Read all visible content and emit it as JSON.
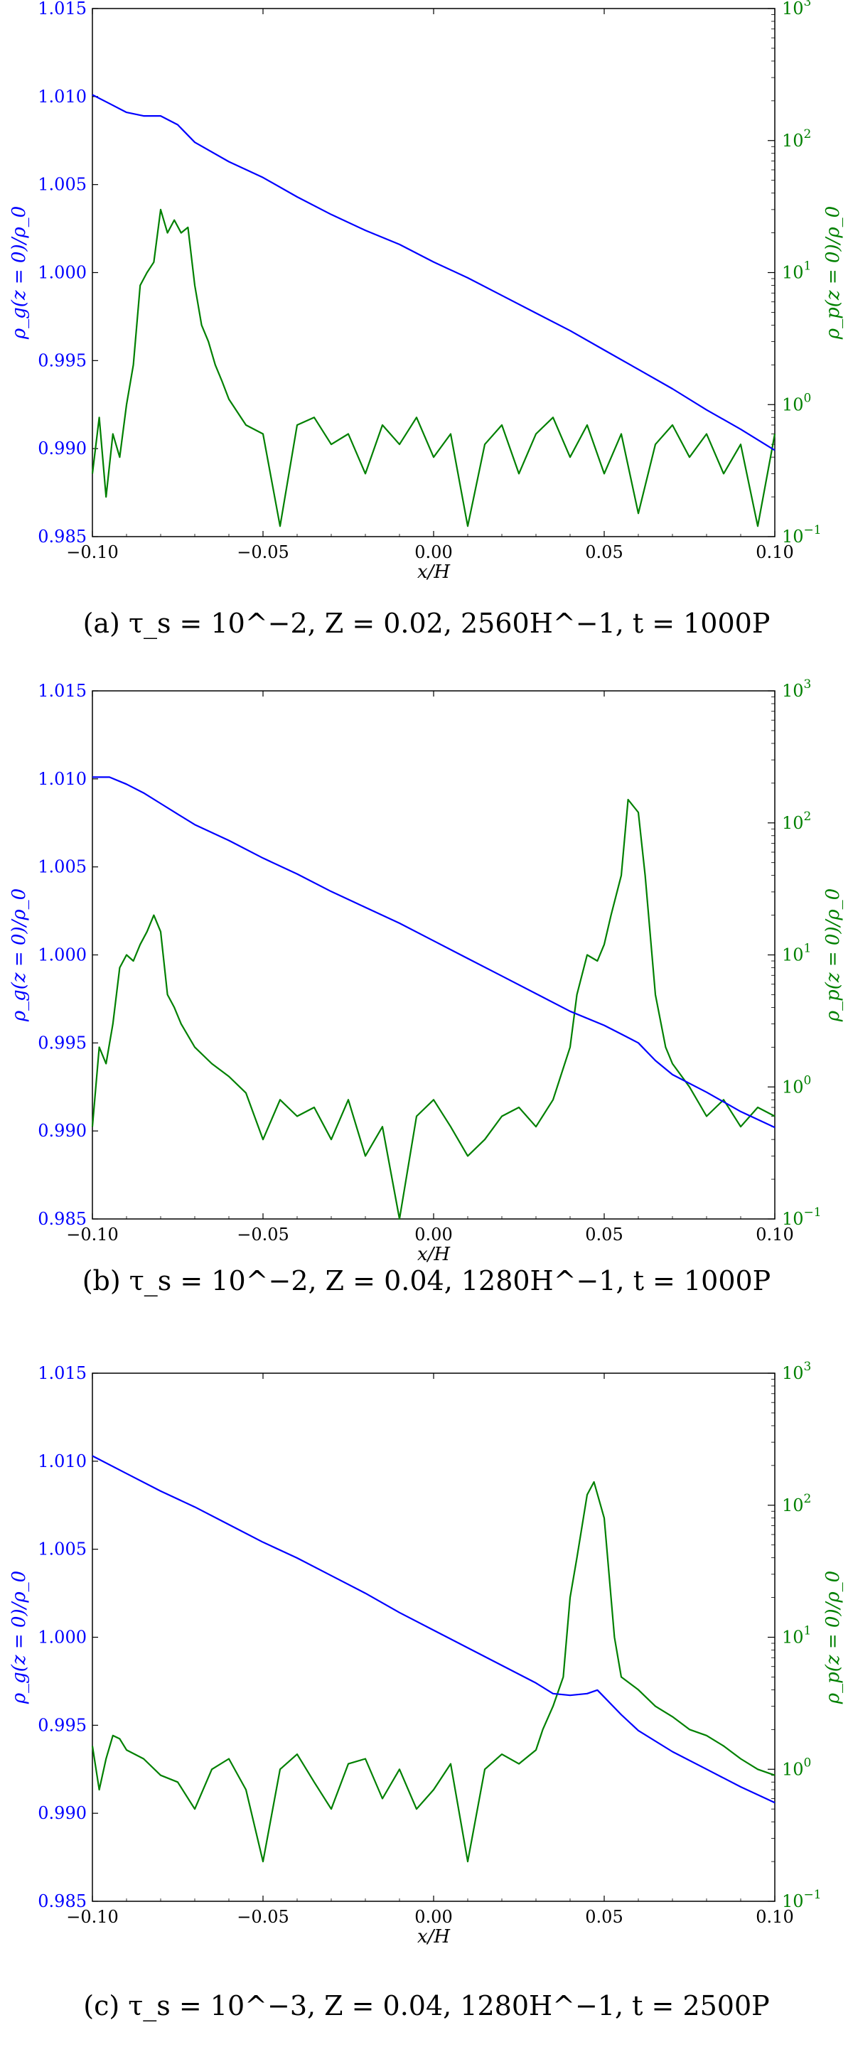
{
  "chart_data": [
    {
      "type": "line",
      "caption": "(a)  τ_s = 10^−2, Z = 0.02, 2560H^−1, t = 1000P",
      "xlabel": "x/H",
      "ylabel": "ρ_g(z = 0)/ρ_0",
      "y2label": "ρ_p(z = 0)/ρ_0",
      "xlim": [
        -0.1,
        0.1
      ],
      "ylim": [
        0.985,
        1.015
      ],
      "y2lim": [
        0.1,
        1000
      ],
      "y2scale": "log",
      "x_ticks": [
        "−0.10",
        "−0.05",
        "0.00",
        "0.05",
        "0.10"
      ],
      "y_ticks": [
        "0.985",
        "0.990",
        "0.995",
        "1.000",
        "1.005",
        "1.010",
        "1.015"
      ],
      "y2_ticks": [
        "10^−1",
        "10^0",
        "10^1",
        "10^2",
        "10^3"
      ],
      "colors": {
        "gas": "#0000ff",
        "particles": "#008000"
      },
      "gas": {
        "x": [
          -0.1,
          -0.095,
          -0.09,
          -0.085,
          -0.08,
          -0.075,
          -0.07,
          -0.06,
          -0.05,
          -0.04,
          -0.03,
          -0.02,
          -0.01,
          0.0,
          0.01,
          0.02,
          0.03,
          0.04,
          0.05,
          0.06,
          0.07,
          0.08,
          0.09,
          0.1
        ],
        "y": [
          1.0101,
          1.0096,
          1.0091,
          1.0089,
          1.0089,
          1.0084,
          1.0074,
          1.0063,
          1.0054,
          1.0043,
          1.0033,
          1.0024,
          1.0016,
          1.0006,
          0.9997,
          0.9987,
          0.9977,
          0.9967,
          0.9956,
          0.9945,
          0.9934,
          0.9922,
          0.9911,
          0.9899
        ]
      },
      "particles": {
        "x": [
          -0.1,
          -0.098,
          -0.096,
          -0.094,
          -0.092,
          -0.09,
          -0.088,
          -0.086,
          -0.084,
          -0.082,
          -0.08,
          -0.078,
          -0.076,
          -0.074,
          -0.072,
          -0.07,
          -0.068,
          -0.066,
          -0.064,
          -0.062,
          -0.06,
          -0.055,
          -0.05,
          -0.045,
          -0.04,
          -0.035,
          -0.03,
          -0.025,
          -0.02,
          -0.015,
          -0.01,
          -0.005,
          0.0,
          0.005,
          0.01,
          0.015,
          0.02,
          0.025,
          0.03,
          0.035,
          0.04,
          0.045,
          0.05,
          0.055,
          0.06,
          0.065,
          0.07,
          0.075,
          0.08,
          0.085,
          0.09,
          0.095,
          0.1
        ],
        "y": [
          0.3,
          0.8,
          0.2,
          0.6,
          0.4,
          1.0,
          2.0,
          8.0,
          10.0,
          12.0,
          30.0,
          20.0,
          25.0,
          20.0,
          22.0,
          8.0,
          4.0,
          3.0,
          2.0,
          1.5,
          1.1,
          0.7,
          0.6,
          0.12,
          0.7,
          0.8,
          0.5,
          0.6,
          0.3,
          0.7,
          0.5,
          0.8,
          0.4,
          0.6,
          0.12,
          0.5,
          0.7,
          0.3,
          0.6,
          0.8,
          0.4,
          0.7,
          0.3,
          0.6,
          0.15,
          0.5,
          0.7,
          0.4,
          0.6,
          0.3,
          0.5,
          0.12,
          0.6
        ]
      }
    },
    {
      "type": "line",
      "caption": "(b)  τ_s = 10^−2, Z = 0.04, 1280H^−1, t = 1000P",
      "xlabel": "x/H",
      "ylabel": "ρ_g(z = 0)/ρ_0",
      "y2label": "ρ_p(z = 0)/ρ_0",
      "xlim": [
        -0.1,
        0.1
      ],
      "ylim": [
        0.985,
        1.015
      ],
      "y2lim": [
        0.1,
        1000
      ],
      "y2scale": "log",
      "x_ticks": [
        "−0.10",
        "−0.05",
        "0.00",
        "0.05",
        "0.10"
      ],
      "y_ticks": [
        "0.985",
        "0.990",
        "0.995",
        "1.000",
        "1.005",
        "1.010",
        "1.015"
      ],
      "y2_ticks": [
        "10^−1",
        "10^0",
        "10^1",
        "10^2",
        "10^3"
      ],
      "colors": {
        "gas": "#0000ff",
        "particles": "#008000"
      },
      "gas": {
        "x": [
          -0.1,
          -0.095,
          -0.09,
          -0.085,
          -0.08,
          -0.075,
          -0.07,
          -0.06,
          -0.05,
          -0.04,
          -0.03,
          -0.02,
          -0.01,
          0.0,
          0.01,
          0.02,
          0.03,
          0.04,
          0.05,
          0.055,
          0.06,
          0.065,
          0.07,
          0.08,
          0.09,
          0.1
        ],
        "y": [
          1.0101,
          1.0101,
          1.0097,
          1.0092,
          1.0086,
          1.008,
          1.0074,
          1.0065,
          1.0055,
          1.0046,
          1.0036,
          1.0027,
          1.0018,
          1.0008,
          0.9998,
          0.9988,
          0.9978,
          0.9968,
          0.996,
          0.9955,
          0.995,
          0.994,
          0.9932,
          0.9922,
          0.9911,
          0.9902
        ]
      },
      "particles": {
        "x": [
          -0.1,
          -0.098,
          -0.096,
          -0.094,
          -0.092,
          -0.09,
          -0.088,
          -0.086,
          -0.084,
          -0.082,
          -0.08,
          -0.078,
          -0.076,
          -0.074,
          -0.07,
          -0.065,
          -0.06,
          -0.055,
          -0.05,
          -0.045,
          -0.04,
          -0.035,
          -0.03,
          -0.025,
          -0.02,
          -0.015,
          -0.01,
          -0.005,
          0.0,
          0.005,
          0.01,
          0.015,
          0.02,
          0.025,
          0.03,
          0.035,
          0.04,
          0.042,
          0.045,
          0.048,
          0.05,
          0.052,
          0.055,
          0.057,
          0.06,
          0.062,
          0.065,
          0.068,
          0.07,
          0.075,
          0.08,
          0.085,
          0.09,
          0.095,
          0.1
        ],
        "y": [
          0.5,
          2.0,
          1.5,
          3.0,
          8.0,
          10.0,
          9.0,
          12.0,
          15.0,
          20.0,
          15.0,
          5.0,
          4.0,
          3.0,
          2.0,
          1.5,
          1.2,
          0.9,
          0.4,
          0.8,
          0.6,
          0.7,
          0.4,
          0.8,
          0.3,
          0.5,
          0.1,
          0.6,
          0.8,
          0.5,
          0.3,
          0.4,
          0.6,
          0.7,
          0.5,
          0.8,
          2.0,
          5.0,
          10.0,
          9.0,
          12.0,
          20.0,
          40.0,
          150.0,
          120.0,
          40.0,
          5.0,
          2.0,
          1.5,
          1.0,
          0.6,
          0.8,
          0.5,
          0.7,
          0.6
        ]
      }
    },
    {
      "type": "line",
      "caption": "(c)  τ_s = 10^−3, Z = 0.04, 1280H^−1, t = 2500P",
      "xlabel": "x/H",
      "ylabel": "ρ_g(z = 0)/ρ_0",
      "y2label": "ρ_p(z = 0)/ρ_0",
      "xlim": [
        -0.1,
        0.1
      ],
      "ylim": [
        0.985,
        1.015
      ],
      "y2lim": [
        0.1,
        1000
      ],
      "y2scale": "log",
      "x_ticks": [
        "−0.10",
        "−0.05",
        "0.00",
        "0.05",
        "0.10"
      ],
      "y_ticks": [
        "0.985",
        "0.990",
        "0.995",
        "1.000",
        "1.005",
        "1.010",
        "1.015"
      ],
      "y2_ticks": [
        "10^−1",
        "10^0",
        "10^1",
        "10^2",
        "10^3"
      ],
      "colors": {
        "gas": "#0000ff",
        "particles": "#008000"
      },
      "gas": {
        "x": [
          -0.1,
          -0.09,
          -0.08,
          -0.07,
          -0.06,
          -0.05,
          -0.04,
          -0.03,
          -0.02,
          -0.01,
          0.0,
          0.01,
          0.02,
          0.03,
          0.035,
          0.04,
          0.045,
          0.048,
          0.05,
          0.055,
          0.06,
          0.07,
          0.08,
          0.09,
          0.1
        ],
        "y": [
          1.0103,
          1.0093,
          1.0083,
          1.0074,
          1.0064,
          1.0054,
          1.0045,
          1.0035,
          1.0025,
          1.0014,
          1.0004,
          0.9994,
          0.9984,
          0.9974,
          0.9968,
          0.9967,
          0.9968,
          0.997,
          0.9966,
          0.9956,
          0.9947,
          0.9935,
          0.9925,
          0.9915,
          0.9906
        ]
      },
      "particles": {
        "x": [
          -0.1,
          -0.098,
          -0.096,
          -0.094,
          -0.092,
          -0.09,
          -0.085,
          -0.08,
          -0.075,
          -0.07,
          -0.065,
          -0.06,
          -0.055,
          -0.05,
          -0.045,
          -0.04,
          -0.035,
          -0.03,
          -0.025,
          -0.02,
          -0.015,
          -0.01,
          -0.005,
          0.0,
          0.005,
          0.01,
          0.015,
          0.02,
          0.025,
          0.03,
          0.032,
          0.035,
          0.038,
          0.04,
          0.042,
          0.045,
          0.047,
          0.05,
          0.053,
          0.055,
          0.06,
          0.065,
          0.07,
          0.075,
          0.08,
          0.085,
          0.09,
          0.095,
          0.1
        ],
        "y": [
          1.5,
          0.7,
          1.2,
          1.8,
          1.7,
          1.4,
          1.2,
          0.9,
          0.8,
          0.5,
          1.0,
          1.2,
          0.7,
          0.2,
          1.0,
          1.3,
          0.8,
          0.5,
          1.1,
          1.2,
          0.6,
          1.0,
          0.5,
          0.7,
          1.1,
          0.2,
          1.0,
          1.3,
          1.1,
          1.4,
          2.0,
          3.0,
          5.0,
          20.0,
          40.0,
          120.0,
          150.0,
          80.0,
          10.0,
          5.0,
          4.0,
          3.0,
          2.5,
          2.0,
          1.8,
          1.5,
          1.2,
          1.0,
          0.9
        ]
      }
    }
  ]
}
